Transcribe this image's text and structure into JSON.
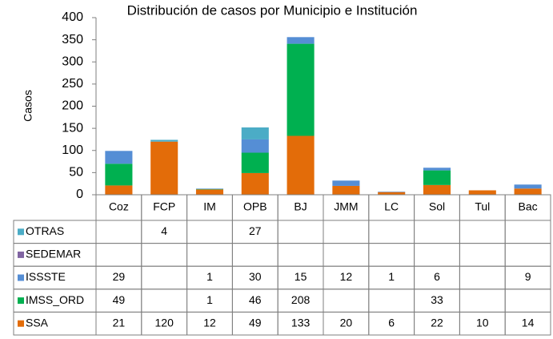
{
  "chart_data": {
    "type": "bar",
    "stacked": true,
    "title": "Distribución de casos por Municipio e Institución",
    "y_label": "Casos",
    "categories": [
      "Coz",
      "FCP",
      "IM",
      "OPB",
      "BJ",
      "JMM",
      "LC",
      "Sol",
      "Tul",
      "Bac"
    ],
    "series": [
      {
        "name": "SSA",
        "color": "#e36c09",
        "values": [
          21,
          120,
          12,
          49,
          133,
          20,
          6,
          22,
          10,
          14
        ]
      },
      {
        "name": "IMSS_ORD",
        "color": "#00b050",
        "values": [
          49,
          null,
          1,
          46,
          208,
          null,
          null,
          33,
          null,
          null
        ]
      },
      {
        "name": "ISSSTE",
        "color": "#558ed5",
        "values": [
          29,
          null,
          1,
          30,
          15,
          12,
          1,
          6,
          null,
          9
        ]
      },
      {
        "name": "SEDEMAR",
        "color": "#8064a2",
        "values": [
          null,
          null,
          null,
          null,
          null,
          null,
          null,
          null,
          null,
          null
        ]
      },
      {
        "name": "OTRAS",
        "color": "#4bacc6",
        "values": [
          null,
          4,
          null,
          27,
          null,
          null,
          null,
          null,
          null,
          null
        ]
      }
    ],
    "ylim": [
      0,
      400
    ],
    "yticks": [
      0,
      50,
      100,
      150,
      200,
      250,
      300,
      350,
      400
    ],
    "grid": false
  }
}
